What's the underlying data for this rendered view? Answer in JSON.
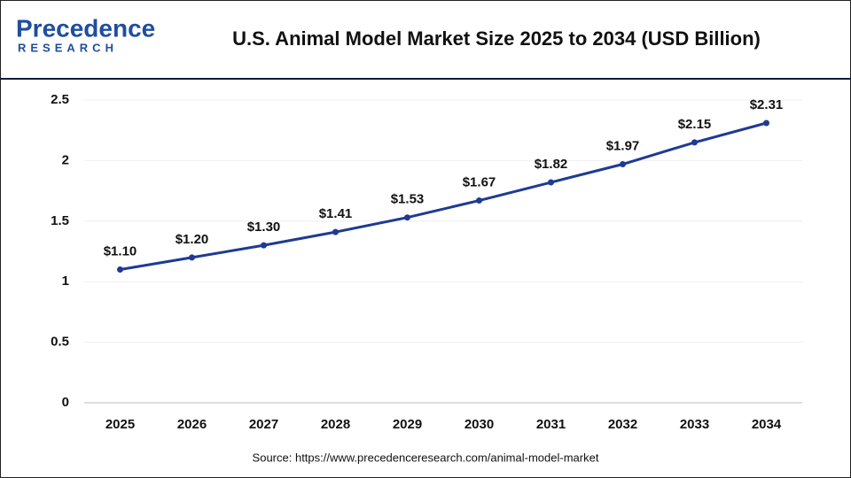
{
  "logo": {
    "name": "Precedence",
    "tagline": "RESEARCH"
  },
  "chart_data": {
    "type": "line",
    "title": "U.S. Animal Model Market Size 2025 to 2034 (USD Billion)",
    "source": "Source: https://www.precedenceresearch.com/animal-model-market",
    "categories": [
      "2025",
      "2026",
      "2027",
      "2028",
      "2029",
      "2030",
      "2031",
      "2032",
      "2033",
      "2034"
    ],
    "series": [
      {
        "name": "U.S. Animal Model Market Size",
        "color": "#1f3a93",
        "values": [
          1.1,
          1.2,
          1.3,
          1.41,
          1.53,
          1.67,
          1.82,
          1.97,
          2.15,
          2.31
        ],
        "value_labels": [
          "$1.10",
          "$1.20",
          "$1.30",
          "$1.41",
          "$1.53",
          "$1.67",
          "$1.82",
          "$1.97",
          "$2.15",
          "$2.31"
        ]
      }
    ],
    "ylim": [
      0,
      2.5
    ],
    "yticks": [
      0,
      0.5,
      1,
      1.5,
      2,
      2.5
    ],
    "grid": true
  }
}
